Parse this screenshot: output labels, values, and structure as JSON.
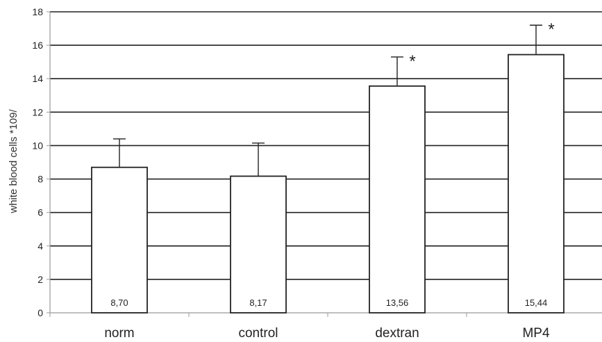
{
  "chart_data": {
    "type": "bar",
    "title": "",
    "xlabel": "",
    "ylabel": "white blood cells *109/",
    "ylim": [
      0,
      18
    ],
    "yticks": [
      0,
      2,
      4,
      6,
      8,
      10,
      12,
      14,
      16,
      18
    ],
    "ytick_labels": [
      "0",
      "2",
      "4",
      "6",
      "8",
      "10",
      "12",
      "14",
      "16",
      "18"
    ],
    "categories": [
      "norm",
      "control",
      "dextran",
      "MP4"
    ],
    "values": [
      8.7,
      8.17,
      13.56,
      15.44
    ],
    "value_labels": [
      "8,70",
      "8,17",
      "13,56",
      "15,44"
    ],
    "error_upper": [
      10.4,
      10.15,
      15.3,
      17.2
    ],
    "significance": [
      "",
      "",
      "*",
      "*"
    ],
    "grid": true,
    "legend": "none",
    "colors": {
      "bar_fill": "#ffffff",
      "bar_stroke": "#222222",
      "grid": "#222222",
      "axis": "#999999"
    }
  }
}
